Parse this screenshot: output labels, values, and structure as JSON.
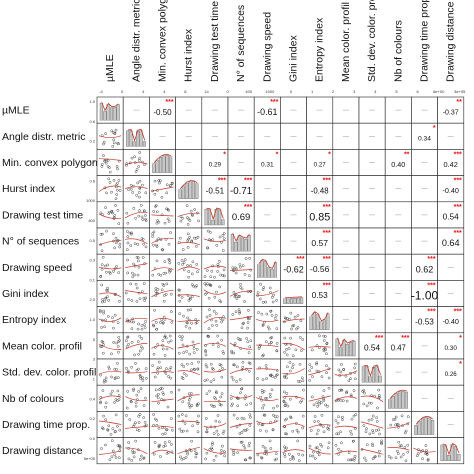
{
  "chart_data": {
    "type": "scatter",
    "title": "",
    "variables": [
      "µMLE",
      "Angle distr. metric",
      "Min. convex polygon",
      "Hurst index",
      "Drawing test time",
      "N° of sequences",
      "Drawing speed",
      "Gini index",
      "Entropy index",
      "Mean color. profil",
      "Std. dev. color. profil",
      "Nb of colours",
      "Drawing time prop.",
      "Drawing distance"
    ],
    "correlations": [
      {
        "row": 0,
        "col": 2,
        "r": "-0.50",
        "stars": "***"
      },
      {
        "row": 0,
        "col": 6,
        "r": "-0.61",
        "stars": "***"
      },
      {
        "row": 0,
        "col": 13,
        "r": "-0.37",
        "stars": "**"
      },
      {
        "row": 1,
        "col": 12,
        "r": "0.34",
        "stars": "*"
      },
      {
        "row": 2,
        "col": 4,
        "r": "0.29",
        "stars": "*"
      },
      {
        "row": 2,
        "col": 6,
        "r": "0.31",
        "stars": "*"
      },
      {
        "row": 2,
        "col": 8,
        "r": "0.27",
        "stars": "*"
      },
      {
        "row": 2,
        "col": 11,
        "r": "0.40",
        "stars": "**"
      },
      {
        "row": 2,
        "col": 13,
        "r": "0.42",
        "stars": "***"
      },
      {
        "row": 3,
        "col": 4,
        "r": "-0.51",
        "stars": "***"
      },
      {
        "row": 3,
        "col": 5,
        "r": "-0.71",
        "stars": "***"
      },
      {
        "row": 3,
        "col": 8,
        "r": "-0.48",
        "stars": "***"
      },
      {
        "row": 3,
        "col": 13,
        "r": "-0.40",
        "stars": "***"
      },
      {
        "row": 4,
        "col": 5,
        "r": "0.69",
        "stars": "***"
      },
      {
        "row": 4,
        "col": 8,
        "r": "0.85",
        "stars": "***"
      },
      {
        "row": 4,
        "col": 13,
        "r": "0.54",
        "stars": "***"
      },
      {
        "row": 5,
        "col": 8,
        "r": "0.57",
        "stars": "***"
      },
      {
        "row": 5,
        "col": 13,
        "r": "0.64",
        "stars": "***"
      },
      {
        "row": 6,
        "col": 7,
        "r": "-0.62",
        "stars": "***"
      },
      {
        "row": 6,
        "col": 8,
        "r": "-0.56",
        "stars": "***"
      },
      {
        "row": 6,
        "col": 12,
        "r": "0.62",
        "stars": "***"
      },
      {
        "row": 7,
        "col": 8,
        "r": "0.53",
        "stars": "***"
      },
      {
        "row": 7,
        "col": 12,
        "r": "-1.00",
        "stars": "***"
      },
      {
        "row": 8,
        "col": 12,
        "r": "-0.53",
        "stars": "***"
      },
      {
        "row": 8,
        "col": 13,
        "r": "-0.40",
        "stars": "***"
      },
      {
        "row": 9,
        "col": 10,
        "r": "0.54",
        "stars": "***"
      },
      {
        "row": 9,
        "col": 11,
        "r": "0.47",
        "stars": "***"
      },
      {
        "row": 9,
        "col": 13,
        "r": "0.30",
        "stars": "*"
      },
      {
        "row": 10,
        "col": 13,
        "r": "0.26",
        "stars": "*"
      }
    ],
    "diag_ticks": {
      "top": [
        "-4",
        "0",
        "4",
        "4",
        "8",
        "14",
        "0",
        "400",
        "1000",
        "0",
        "1",
        "2",
        "3",
        "4",
        "5",
        "6",
        "6e+00",
        "3e+05"
      ],
      "left": [
        "1.0",
        "0.6",
        "0.2",
        "1.0",
        "0.6",
        "1000",
        "400",
        "0.5",
        "0.3",
        "0.1",
        "2.0",
        "1.0",
        "5",
        "3",
        "1",
        "0.4",
        "0.2",
        "0.0",
        "5e+05"
      ]
    },
    "grid": false,
    "legend": "none",
    "colors": {
      "points": "#333333",
      "star": "#e11111",
      "bars": "#c8c8c8",
      "smooth": "#c0392b"
    }
  }
}
